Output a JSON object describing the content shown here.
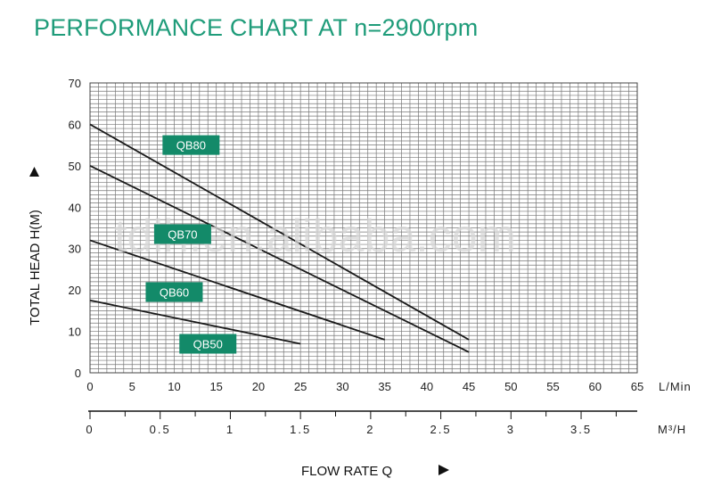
{
  "title": "PERFORMANCE CHART AT n=2900rpm",
  "watermark": "tdlh.en.alibaba.com",
  "colors": {
    "title": "#1f9c7a",
    "label_bg": "#138a69",
    "grid": "#777777",
    "line": "#1a1a1a"
  },
  "chart_data": {
    "type": "line",
    "title": "PERFORMANCE CHART AT n=2900rpm",
    "xlabel": "FLOW RATE Q",
    "ylabel": "TOTAL HEAD H(M)",
    "x_unit": "L/Min",
    "x2_unit": "M³/H",
    "xlim": [
      0,
      65
    ],
    "ylim": [
      0,
      70
    ],
    "grid": true,
    "x_ticks": [
      "0",
      "5",
      "10",
      "15",
      "20",
      "25",
      "30",
      "35",
      "40",
      "45",
      "50",
      "55",
      "60",
      "65"
    ],
    "y_ticks": [
      "0",
      "10",
      "20",
      "30",
      "40",
      "50",
      "60",
      "70"
    ],
    "x2_ticks": [
      {
        "value": 0,
        "label": "0"
      },
      {
        "value": 0.5,
        "label": "0.5"
      },
      {
        "value": 1,
        "label": "1"
      },
      {
        "value": 1.5,
        "label": "1.5"
      },
      {
        "value": 2,
        "label": "2"
      },
      {
        "value": 2.5,
        "label": "2.5"
      },
      {
        "value": 3,
        "label": "3"
      },
      {
        "value": 3.5,
        "label": "3.5"
      }
    ],
    "series": [
      {
        "name": "QB80",
        "x": [
          0,
          45
        ],
        "y": [
          60,
          8
        ],
        "label_at": [
          12,
          55
        ]
      },
      {
        "name": "QB70",
        "x": [
          0,
          45
        ],
        "y": [
          50,
          5
        ],
        "label_at": [
          11,
          33.5
        ]
      },
      {
        "name": "QB60",
        "x": [
          0,
          35
        ],
        "y": [
          32,
          8
        ],
        "label_at": [
          10,
          19.5
        ]
      },
      {
        "name": "QB50",
        "x": [
          0,
          25
        ],
        "y": [
          17.5,
          7
        ],
        "label_at": [
          14,
          7
        ]
      }
    ]
  }
}
